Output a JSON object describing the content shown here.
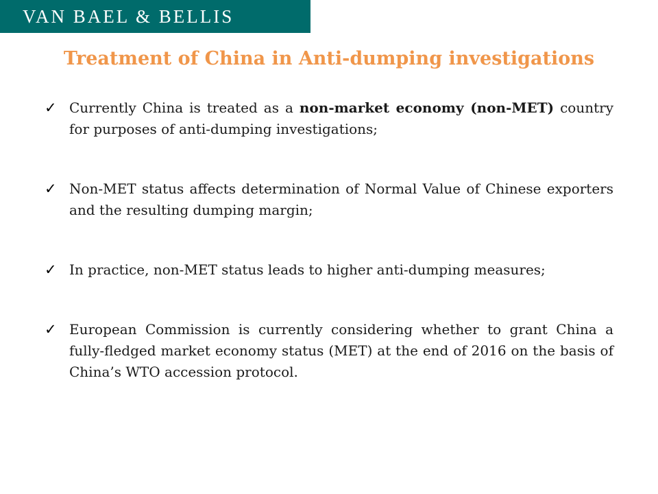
{
  "header": {
    "brand": "VAN BAEL & BELLIS",
    "brand_color": "#006b6b"
  },
  "title": {
    "text": "Treatment of China in Anti-dumping investigations",
    "color": "#f0964a"
  },
  "bullets": [
    {
      "icon": "checkmark-icon",
      "segments": [
        {
          "text": "Currently China is treated as a ",
          "bold": false
        },
        {
          "text": "non-market economy (non-MET)",
          "bold": true
        },
        {
          "text": " country for purposes of anti-dumping investigations;",
          "bold": false
        }
      ]
    },
    {
      "icon": "checkmark-icon",
      "segments": [
        {
          "text": "Non-MET status affects determination of Normal Value of Chinese exporters and the resulting dumping margin;",
          "bold": false
        }
      ]
    },
    {
      "icon": "checkmark-icon",
      "segments": [
        {
          "text": "In practice, non-MET status leads to higher anti-dumping measures;",
          "bold": false
        }
      ]
    },
    {
      "icon": "checkmark-icon",
      "segments": [
        {
          "text": "European Commission is currently considering whether to grant China a fully-fledged market economy status (MET) at the end of 2016 on the basis of China’s WTO accession protocol.",
          "bold": false
        }
      ]
    }
  ]
}
